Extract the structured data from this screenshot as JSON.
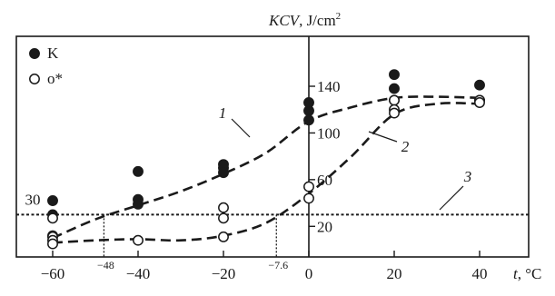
{
  "chart_data": {
    "type": "scatter",
    "ylabel_italic": "KCV",
    "ylabel_rest": ", J/cm",
    "ylabel_sup": "2",
    "xlabel_italic": "t",
    "xlabel_rest": ", °C",
    "xlim": [
      -70,
      45
    ],
    "ylim": [
      0,
      160
    ],
    "x_ticks": [
      -60,
      -40,
      -20,
      0,
      20,
      40
    ],
    "x_tick_labels": [
      "−60",
      "−40",
      "−20",
      "0",
      "20",
      "40"
    ],
    "y_ticks": [
      20,
      60,
      100,
      140
    ],
    "y_tick_labels": [
      "20",
      "60",
      "100",
      "140"
    ],
    "threshold_value": 30,
    "threshold_label": "30",
    "x_markers": [
      -48,
      -7.6
    ],
    "x_marker_labels": [
      "−48",
      "−7.6"
    ],
    "legend": [
      {
        "marker": "filled",
        "label": "K"
      },
      {
        "marker": "open",
        "label": "o*"
      }
    ],
    "series": [
      {
        "name": "K",
        "marker": "filled",
        "points": [
          [
            -60,
            42
          ],
          [
            -60,
            30
          ],
          [
            -60,
            12
          ],
          [
            -40,
            67
          ],
          [
            -40,
            43
          ],
          [
            -40,
            39
          ],
          [
            -20,
            73
          ],
          [
            -20,
            70
          ],
          [
            -20,
            66
          ],
          [
            0,
            126
          ],
          [
            0,
            119
          ],
          [
            0,
            111
          ],
          [
            20,
            150
          ],
          [
            20,
            138
          ],
          [
            20,
            128
          ],
          [
            40,
            141
          ],
          [
            40,
            128
          ]
        ]
      },
      {
        "name": "o*",
        "marker": "open",
        "points": [
          [
            -60,
            27
          ],
          [
            -60,
            11
          ],
          [
            -60,
            8
          ],
          [
            -60,
            5
          ],
          [
            -40,
            8
          ],
          [
            -20,
            36
          ],
          [
            -20,
            27
          ],
          [
            -20,
            11
          ],
          [
            0,
            54
          ],
          [
            0,
            44
          ],
          [
            20,
            128
          ],
          [
            20,
            120
          ],
          [
            20,
            117
          ],
          [
            40,
            128
          ],
          [
            40,
            126
          ]
        ]
      }
    ],
    "curves": [
      {
        "label": "1",
        "points": [
          [
            -60,
            10
          ],
          [
            -50,
            26
          ],
          [
            -40,
            38
          ],
          [
            -30,
            50
          ],
          [
            -20,
            65
          ],
          [
            -10,
            83
          ],
          [
            0,
            110
          ],
          [
            10,
            122
          ],
          [
            20,
            130
          ],
          [
            30,
            131
          ],
          [
            40,
            130
          ]
        ]
      },
      {
        "label": "2",
        "points": [
          [
            -60,
            6
          ],
          [
            -50,
            8
          ],
          [
            -40,
            9
          ],
          [
            -30,
            8
          ],
          [
            -20,
            12
          ],
          [
            -10,
            23
          ],
          [
            0,
            48
          ],
          [
            10,
            80
          ],
          [
            20,
            116
          ],
          [
            30,
            125
          ],
          [
            40,
            125
          ]
        ]
      },
      {
        "label": "3",
        "points": [
          [
            -65,
            30
          ],
          [
            45,
            30
          ]
        ]
      }
    ]
  }
}
